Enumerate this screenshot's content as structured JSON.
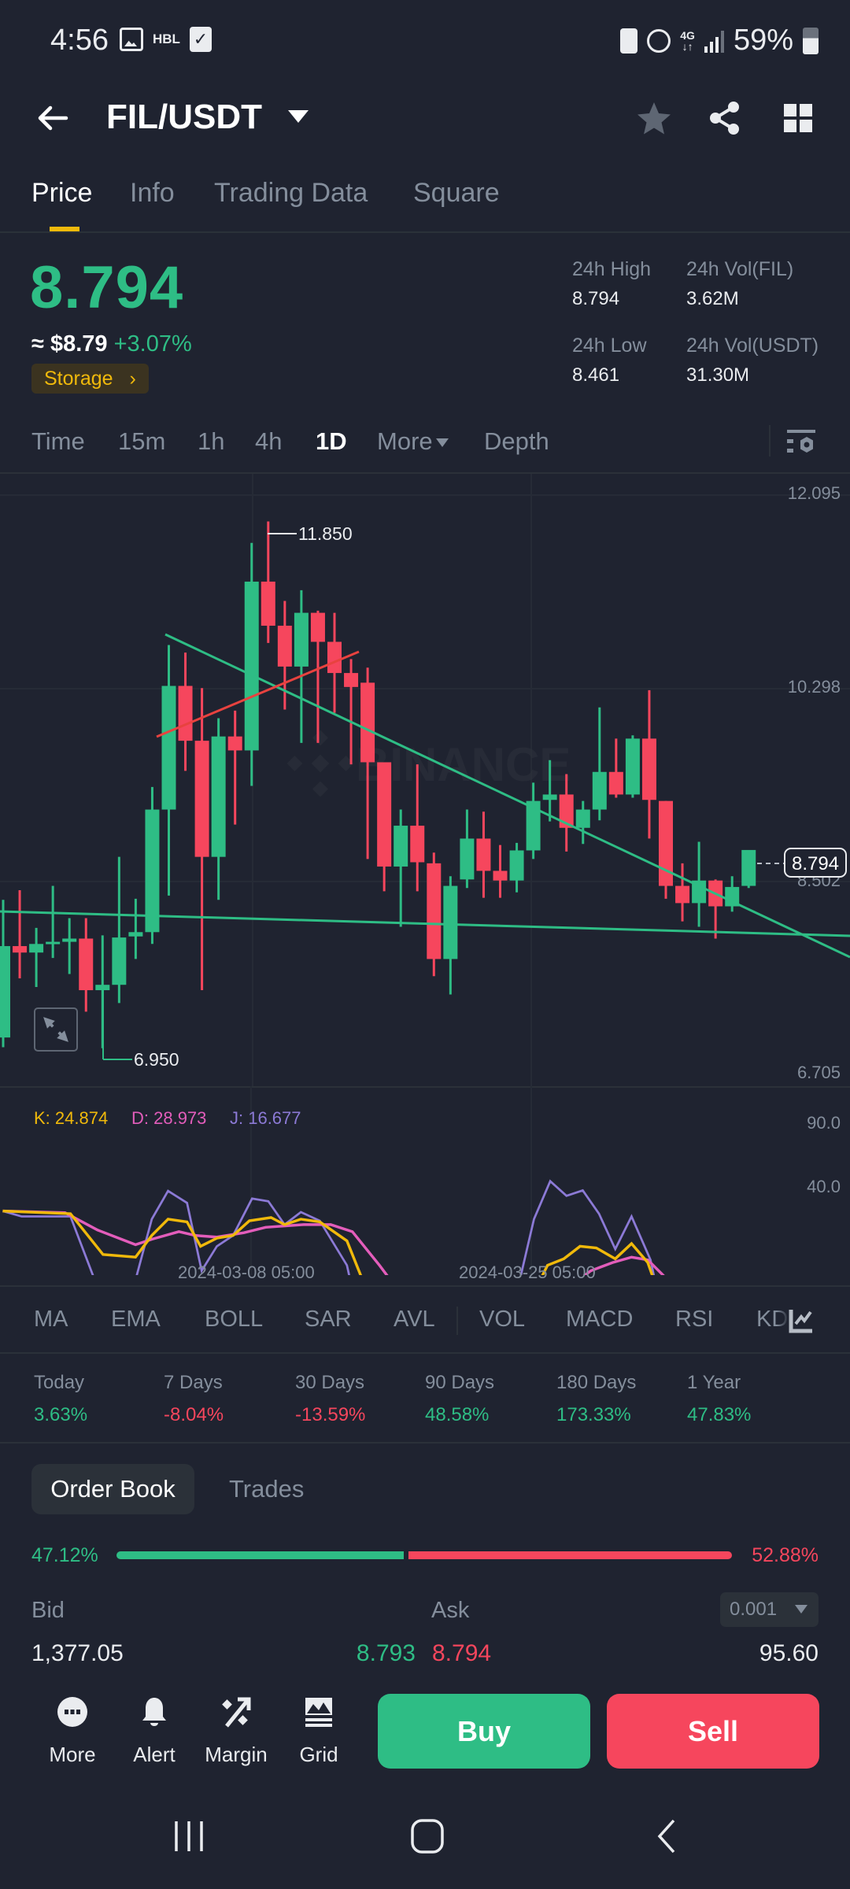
{
  "status_bar": {
    "time": "4:56",
    "carrier_badge": "HBL",
    "network": "4G",
    "battery": "59%"
  },
  "header": {
    "title": "FIL/USDT",
    "icons": [
      "back-arrow-icon",
      "dropdown-caret-icon",
      "star-icon",
      "share-icon",
      "grid-icon"
    ]
  },
  "tabs": [
    {
      "label": "Price",
      "active": true
    },
    {
      "label": "Info",
      "active": false
    },
    {
      "label": "Trading Data",
      "active": false
    },
    {
      "label": "Square",
      "active": false
    }
  ],
  "ticker": {
    "last_price": "8.794",
    "usd_approx": "≈ $8.79",
    "change_pct": "+3.07%",
    "tag": "Storage",
    "tag_arrow": "›",
    "stats": {
      "high_label": "24h High",
      "high_value": "8.794",
      "low_label": "24h Low",
      "low_value": "8.461",
      "vol_base_label": "24h Vol(FIL)",
      "vol_base_value": "3.62M",
      "vol_quote_label": "24h Vol(USDT)",
      "vol_quote_value": "31.30M"
    }
  },
  "intervals": {
    "items": [
      "Time",
      "15m",
      "1h",
      "4h",
      "1D",
      "More",
      "Depth"
    ],
    "active": "1D"
  },
  "colors": {
    "background": "#1f2330",
    "up": "#2ebd85",
    "down": "#f6465d",
    "accent": "#f0b90b",
    "muted": "#848e9c",
    "trendline_green": "#2ebd85",
    "trendline_red": "#e8423f",
    "k_line": "#f0b90b",
    "d_line": "#e35dbb",
    "j_line": "#8c7ad6"
  },
  "chart": {
    "watermark": "BINANCE",
    "high_marker": "11.850",
    "low_marker": "6.950",
    "current_price_tag": "8.794",
    "price_axis": [
      "12.095",
      "10.298",
      "8.502",
      "6.705"
    ],
    "kdj": {
      "k": "K: 24.874",
      "d": "D: 28.973",
      "j": "J: 16.677",
      "axis": [
        "90.0",
        "40.0"
      ]
    },
    "dates": [
      "2024-03-08 05:00",
      "2024-03-25 05:00"
    ]
  },
  "chart_data": {
    "type": "candlestick",
    "title": "FIL/USDT 1D",
    "ylim": [
      6.705,
      12.095
    ],
    "y_ticks": [
      12.095,
      10.298,
      8.502,
      6.705
    ],
    "x_ticks": [
      "2024-03-08 05:00",
      "2024-03-25 05:00"
    ],
    "grid": true,
    "annotations": {
      "max": 11.85,
      "min": 6.95,
      "last": 8.794
    },
    "ohlc": [
      [
        7.05,
        8.33,
        6.96,
        7.9
      ],
      [
        7.9,
        8.42,
        7.6,
        7.84
      ],
      [
        7.84,
        8.07,
        7.52,
        7.92
      ],
      [
        7.93,
        8.46,
        7.79,
        7.94
      ],
      [
        7.94,
        8.16,
        7.64,
        7.97
      ],
      [
        7.97,
        8.16,
        7.29,
        7.49
      ],
      [
        7.49,
        8.0,
        6.95,
        7.54
      ],
      [
        7.54,
        8.73,
        7.37,
        7.98
      ],
      [
        7.99,
        8.34,
        7.78,
        8.03
      ],
      [
        8.03,
        9.38,
        7.92,
        9.17
      ],
      [
        9.17,
        10.7,
        8.37,
        10.32
      ],
      [
        10.32,
        10.63,
        9.53,
        9.81
      ],
      [
        9.81,
        10.3,
        7.49,
        8.73
      ],
      [
        8.73,
        10.02,
        8.33,
        9.85
      ],
      [
        9.85,
        10.09,
        9.03,
        9.72
      ],
      [
        9.72,
        11.65,
        9.39,
        11.29
      ],
      [
        11.29,
        11.85,
        10.72,
        10.88
      ],
      [
        10.88,
        11.11,
        10.1,
        10.5
      ],
      [
        10.5,
        11.21,
        9.79,
        11.0
      ],
      [
        11.0,
        11.02,
        9.79,
        10.73
      ],
      [
        10.73,
        11.0,
        10.07,
        10.44
      ],
      [
        10.44,
        10.57,
        9.59,
        10.31
      ],
      [
        10.35,
        10.49,
        8.71,
        9.61
      ],
      [
        9.61,
        9.61,
        8.41,
        8.64
      ],
      [
        8.64,
        9.17,
        8.08,
        9.02
      ],
      [
        9.02,
        9.59,
        8.41,
        8.68
      ],
      [
        8.67,
        8.77,
        7.62,
        7.78
      ],
      [
        7.78,
        8.55,
        7.45,
        8.46
      ],
      [
        8.52,
        9.17,
        8.44,
        8.9
      ],
      [
        8.9,
        9.15,
        8.35,
        8.6
      ],
      [
        8.6,
        8.84,
        8.35,
        8.51
      ],
      [
        8.51,
        8.86,
        8.4,
        8.79
      ],
      [
        8.79,
        9.42,
        8.71,
        9.25
      ],
      [
        9.26,
        9.63,
        9.06,
        9.31
      ],
      [
        9.31,
        9.5,
        8.78,
        9.0
      ],
      [
        9.0,
        9.25,
        8.85,
        9.17
      ],
      [
        9.17,
        10.12,
        9.07,
        9.52
      ],
      [
        9.52,
        9.83,
        9.28,
        9.31
      ],
      [
        9.31,
        9.86,
        9.28,
        9.83
      ],
      [
        9.83,
        10.28,
        8.9,
        9.26
      ],
      [
        9.25,
        9.25,
        8.34,
        8.46
      ],
      [
        8.46,
        8.67,
        8.13,
        8.3
      ],
      [
        8.3,
        8.87,
        8.08,
        8.51
      ],
      [
        8.51,
        8.52,
        7.97,
        8.27
      ],
      [
        8.27,
        8.55,
        8.22,
        8.45
      ],
      [
        8.46,
        8.79,
        8.44,
        8.794
      ]
    ],
    "trendlines": [
      {
        "color": "green",
        "from": [
          210,
          806
        ],
        "to": [
          1080,
          1216
        ]
      },
      {
        "color": "red",
        "from": [
          199,
          936
        ],
        "to": [
          456,
          828
        ]
      },
      {
        "color": "green",
        "from": [
          0,
          1158
        ],
        "to": [
          1080,
          1189
        ]
      }
    ],
    "indicator": {
      "name": "KDJ",
      "k": 24.874,
      "d": 28.973,
      "j": 16.677,
      "ylim_labels": [
        90.0,
        40.0
      ],
      "k_points": [
        [
          5,
          230
        ],
        [
          130,
          235
        ],
        [
          190,
          310
        ],
        [
          250,
          315
        ],
        [
          280,
          275
        ],
        [
          310,
          245
        ],
        [
          345,
          250
        ],
        [
          370,
          295
        ],
        [
          400,
          280
        ],
        [
          430,
          275
        ],
        [
          460,
          248
        ],
        [
          500,
          242
        ],
        [
          525,
          255
        ],
        [
          555,
          245
        ],
        [
          590,
          250
        ],
        [
          640,
          285
        ],
        [
          700,
          435
        ],
        [
          760,
          490
        ],
        [
          800,
          528
        ],
        [
          830,
          520
        ],
        [
          870,
          492
        ],
        [
          910,
          485
        ],
        [
          940,
          480
        ],
        [
          980,
          390
        ],
        [
          1010,
          330
        ],
        [
          1040,
          318
        ],
        [
          1070,
          295
        ],
        [
          1100,
          298
        ],
        [
          1135,
          318
        ],
        [
          1165,
          290
        ],
        [
          1195,
          325
        ],
        [
          1230,
          425
        ],
        [
          1260,
          480
        ],
        [
          1290,
          500
        ],
        [
          1320,
          522
        ],
        [
          1350,
          520
        ],
        [
          1378,
          510
        ]
      ],
      "d_points": [
        [
          5,
          230
        ],
        [
          120,
          233
        ],
        [
          180,
          265
        ],
        [
          250,
          292
        ],
        [
          280,
          282
        ],
        [
          330,
          268
        ],
        [
          360,
          275
        ],
        [
          400,
          278
        ],
        [
          450,
          270
        ],
        [
          490,
          260
        ],
        [
          560,
          255
        ],
        [
          610,
          255
        ],
        [
          650,
          268
        ],
        [
          700,
          330
        ],
        [
          760,
          410
        ],
        [
          800,
          460
        ],
        [
          830,
          478
        ],
        [
          880,
          485
        ],
        [
          930,
          483
        ],
        [
          960,
          460
        ],
        [
          1000,
          415
        ],
        [
          1050,
          370
        ],
        [
          1090,
          340
        ],
        [
          1130,
          325
        ],
        [
          1165,
          315
        ],
        [
          1195,
          320
        ],
        [
          1230,
          355
        ],
        [
          1270,
          405
        ],
        [
          1320,
          460
        ],
        [
          1378,
          492
        ]
      ],
      "j_points": [
        [
          5,
          230
        ],
        [
          40,
          240
        ],
        [
          130,
          240
        ],
        [
          190,
          397
        ],
        [
          250,
          357
        ],
        [
          280,
          245
        ],
        [
          310,
          193
        ],
        [
          345,
          215
        ],
        [
          372,
          340
        ],
        [
          400,
          295
        ],
        [
          430,
          275
        ],
        [
          465,
          207
        ],
        [
          495,
          212
        ],
        [
          525,
          255
        ],
        [
          555,
          232
        ],
        [
          590,
          248
        ],
        [
          640,
          330
        ],
        [
          705,
          622
        ],
        [
          740,
          620
        ],
        [
          770,
          628
        ],
        [
          800,
          678
        ],
        [
          830,
          595
        ],
        [
          865,
          520
        ],
        [
          910,
          487
        ],
        [
          950,
          395
        ],
        [
          985,
          245
        ],
        [
          1015,
          175
        ],
        [
          1045,
          202
        ],
        [
          1075,
          192
        ],
        [
          1105,
          235
        ],
        [
          1135,
          300
        ],
        [
          1165,
          240
        ],
        [
          1200,
          320
        ],
        [
          1230,
          460
        ],
        [
          1260,
          645
        ],
        [
          1290,
          635
        ],
        [
          1320,
          645
        ],
        [
          1350,
          610
        ],
        [
          1378,
          550
        ]
      ]
    }
  },
  "indicators": [
    "MA",
    "EMA",
    "BOLL",
    "SAR",
    "AVL",
    "VOL",
    "MACD",
    "RSI",
    "KD"
  ],
  "performance": [
    {
      "label": "Today",
      "value": "3.63%",
      "dir": "up"
    },
    {
      "label": "7 Days",
      "value": "-8.04%",
      "dir": "down"
    },
    {
      "label": "30 Days",
      "value": "-13.59%",
      "dir": "down"
    },
    {
      "label": "90 Days",
      "value": "48.58%",
      "dir": "up"
    },
    {
      "label": "180 Days",
      "value": "173.33%",
      "dir": "up"
    },
    {
      "label": "1 Year",
      "value": "47.83%",
      "dir": "up"
    }
  ],
  "order_book": {
    "tabs": [
      "Order Book",
      "Trades"
    ],
    "bid_ratio": "47.12%",
    "ask_ratio": "52.88%",
    "bid_ratio_num": 47.12,
    "bid_label": "Bid",
    "ask_label": "Ask",
    "precision": "0.001",
    "row": {
      "bid_qty": "1,377.05",
      "bid_price": "8.793",
      "ask_price": "8.794",
      "ask_qty": "95.60"
    }
  },
  "bottom_bar": {
    "items": [
      {
        "label": "More",
        "icon": "more-dots-icon"
      },
      {
        "label": "Alert",
        "icon": "bell-icon"
      },
      {
        "label": "Margin",
        "icon": "margin-percent-icon"
      },
      {
        "label": "Grid",
        "icon": "grid-bot-icon"
      }
    ],
    "buy": "Buy",
    "sell": "Sell"
  }
}
